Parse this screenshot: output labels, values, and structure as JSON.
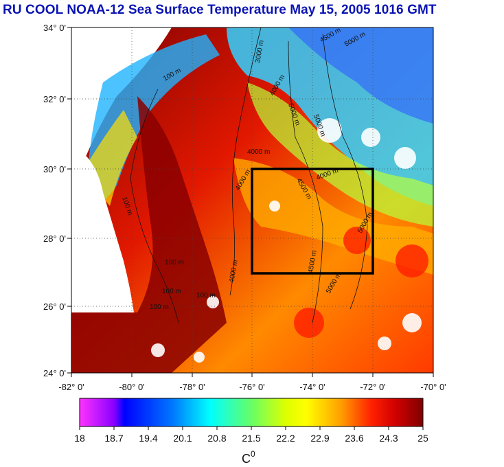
{
  "title": "RU COOL  NOAA-12 Sea Surface Temperature May 15, 2005 1016 GMT",
  "map": {
    "lat_range": [
      24,
      34
    ],
    "lon_range": [
      -82,
      -70
    ],
    "y_ticks": [
      "34° 0'",
      "32° 0'",
      "30° 0'",
      "28° 0'",
      "26° 0'",
      "24° 0'"
    ],
    "x_ticks": [
      "-82° 0'",
      "-80° 0'",
      "-78° 0'",
      "-76° 0'",
      "-74° 0'",
      "-72° 0'",
      "-70° 0'"
    ],
    "study_box": {
      "lon_min": -76,
      "lon_max": -72,
      "lat_min": 27,
      "lat_max": 30
    },
    "contour_labels": [
      "100 m",
      "100 m",
      "100 m",
      "100 m",
      "100 m",
      "100 m",
      "4000 m",
      "4000 m",
      "4000 m",
      "4000 m",
      "4500 m",
      "4500 m",
      "4500 m",
      "5000 m",
      "5000 m",
      "5000 m",
      "5000 m",
      "5000 m",
      "3000 m",
      "4000 m"
    ]
  },
  "colorbar": {
    "ticks": [
      "18",
      "18.7",
      "19.4",
      "20.1",
      "20.8",
      "21.5",
      "22.2",
      "22.9",
      "23.6",
      "24.3",
      "25"
    ],
    "range": [
      18,
      25
    ],
    "unit": "C",
    "unit_sup": "0",
    "colors": [
      "#ff33ff",
      "#8a00ff",
      "#0000ff",
      "#0066ff",
      "#00ccff",
      "#00ffcc",
      "#66ff66",
      "#ccff00",
      "#ffff00",
      "#ffb000",
      "#ff5500",
      "#ff0000",
      "#c00000",
      "#800000"
    ]
  },
  "colors": {
    "title": "#0a14b4",
    "land": "#ffffff",
    "box": "#000000"
  }
}
